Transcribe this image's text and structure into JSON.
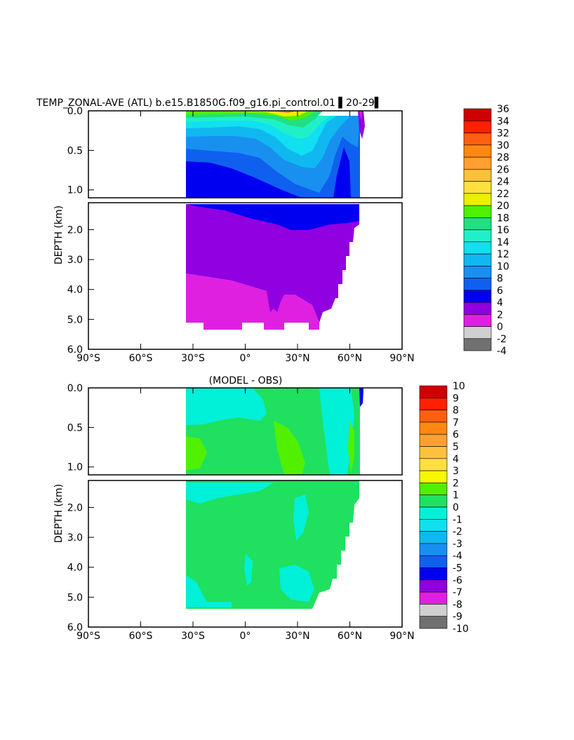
{
  "title": "TEMP_ZONAL-AVE (ATL) b.e15.B1850G.f09_g16.pi_control.01 ▌20-29▌",
  "chart_data": [
    {
      "type": "heatmap",
      "title": "TEMP_ZONAL-AVE (ATL) b.e15.B1850G.f09_g16.pi_control.01 ▌20-29▌",
      "xlabel": "",
      "ylabel": "DEPTH (km)",
      "xlim": [
        -90,
        90
      ],
      "x_ticks": [
        -90,
        -60,
        -30,
        0,
        30,
        60,
        90
      ],
      "x_tick_labels": [
        "90°S",
        "60°S",
        "30°S",
        "0°",
        "30°N",
        "60°N",
        "90°N"
      ],
      "upper_ylim": [
        0.0,
        1.1
      ],
      "upper_y_tick_labels": [
        "0.0",
        "0.5",
        "1.0"
      ],
      "lower_ylim": [
        1.1,
        6.0
      ],
      "lower_y_tick_labels": [
        "2.0",
        "3.0",
        "4.0",
        "5.0",
        "6.0"
      ],
      "data_lat_range": [
        -34,
        66
      ],
      "colorbar": {
        "levels": [
          "-4",
          "-2",
          "0",
          "2",
          "4",
          "6",
          "8",
          "10",
          "12",
          "14",
          "16",
          "18",
          "20",
          "22",
          "24",
          "26",
          "28",
          "30",
          "32",
          "34",
          "36"
        ],
        "colors": [
          "#707070",
          "#d0d0d0",
          "#e020e0",
          "#9000e0",
          "#0000f0",
          "#1060f0",
          "#1890f0",
          "#10b8f0",
          "#10e0f0",
          "#20f0c8",
          "#20e080",
          "#50f000",
          "#e8f000",
          "#ffe040",
          "#ffc040",
          "#ffa030",
          "#ff8810",
          "#ff6010",
          "#ff2000",
          "#d00000"
        ]
      }
    },
    {
      "type": "heatmap",
      "title": "(MODEL - OBS)",
      "xlabel": "",
      "ylabel": "DEPTH (km)",
      "xlim": [
        -90,
        90
      ],
      "x_ticks": [
        -90,
        -60,
        -30,
        0,
        30,
        60,
        90
      ],
      "x_tick_labels": [
        "90°S",
        "60°S",
        "30°S",
        "0°",
        "30°N",
        "60°N",
        "90°N"
      ],
      "upper_ylim": [
        0.0,
        1.1
      ],
      "upper_y_tick_labels": [
        "0.0",
        "0.5",
        "1.0"
      ],
      "lower_ylim": [
        1.1,
        6.0
      ],
      "lower_y_tick_labels": [
        "2.0",
        "3.0",
        "4.0",
        "5.0",
        "6.0"
      ],
      "data_lat_range": [
        -34,
        66
      ],
      "colorbar": {
        "levels": [
          "10",
          "9",
          "8",
          "7",
          "6",
          "5",
          "4",
          "3",
          "2",
          "1",
          "0",
          "-1",
          "-2",
          "-3",
          "-4",
          "-5",
          "-6",
          "-7",
          "-8",
          "-9",
          "-10"
        ],
        "colors": [
          "#d00000",
          "#ff2000",
          "#ff6010",
          "#ff8810",
          "#ffa030",
          "#ffc040",
          "#ffe040",
          "#f8f800",
          "#50f000",
          "#20e060",
          "#00f0d8",
          "#10e0f0",
          "#10b8f0",
          "#1890f0",
          "#1060f0",
          "#0000f0",
          "#9000e0",
          "#e020e0",
          "#d0d0d0",
          "#707070"
        ]
      }
    }
  ]
}
